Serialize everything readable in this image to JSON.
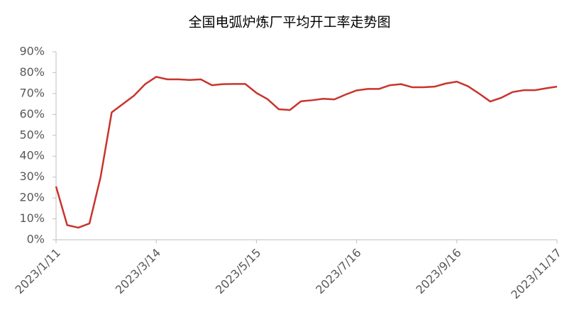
{
  "chart_data": {
    "type": "line",
    "title": "全国电弧炉炼厂平均开工率走势图",
    "categories": [
      "2023/1/11",
      null,
      null,
      null,
      null,
      null,
      null,
      null,
      null,
      "2023/3/14",
      null,
      null,
      null,
      null,
      null,
      null,
      null,
      null,
      "2023/5/15",
      null,
      null,
      null,
      null,
      null,
      null,
      null,
      null,
      "2023/7/16",
      null,
      null,
      null,
      null,
      null,
      null,
      null,
      null,
      "2023/9/16",
      null,
      null,
      null,
      null,
      null,
      null,
      null,
      null,
      "2023/11/17"
    ],
    "series": [
      {
        "color": "#c9342c",
        "values": [
          25.5,
          7,
          5.8,
          7.8,
          30,
          61,
          65,
          69,
          74.5,
          78,
          76.8,
          76.8,
          76.5,
          76.8,
          74,
          74.5,
          74.6,
          74.6,
          70.3,
          67.3,
          62.5,
          62.1,
          66.3,
          66.8,
          67.5,
          67.2,
          69.5,
          71.5,
          72.2,
          72.2,
          74,
          74.5,
          73,
          73,
          73.3,
          74.8,
          75.7,
          73.5,
          70,
          66.2,
          68,
          70.7,
          71.6,
          71.6,
          72.5,
          73.3
        ]
      }
    ],
    "ylim": [
      0,
      90
    ],
    "yticks": [
      {
        "value": 0,
        "label": "0%"
      },
      {
        "value": 10,
        "label": "10%"
      },
      {
        "value": 20,
        "label": "20%"
      },
      {
        "value": 30,
        "label": "30%"
      },
      {
        "value": 40,
        "label": "40%"
      },
      {
        "value": 50,
        "label": "50%"
      },
      {
        "value": 60,
        "label": "60%"
      },
      {
        "value": 70,
        "label": "70%"
      },
      {
        "value": 80,
        "label": "80%"
      },
      {
        "value": 90,
        "label": "90%"
      }
    ]
  }
}
